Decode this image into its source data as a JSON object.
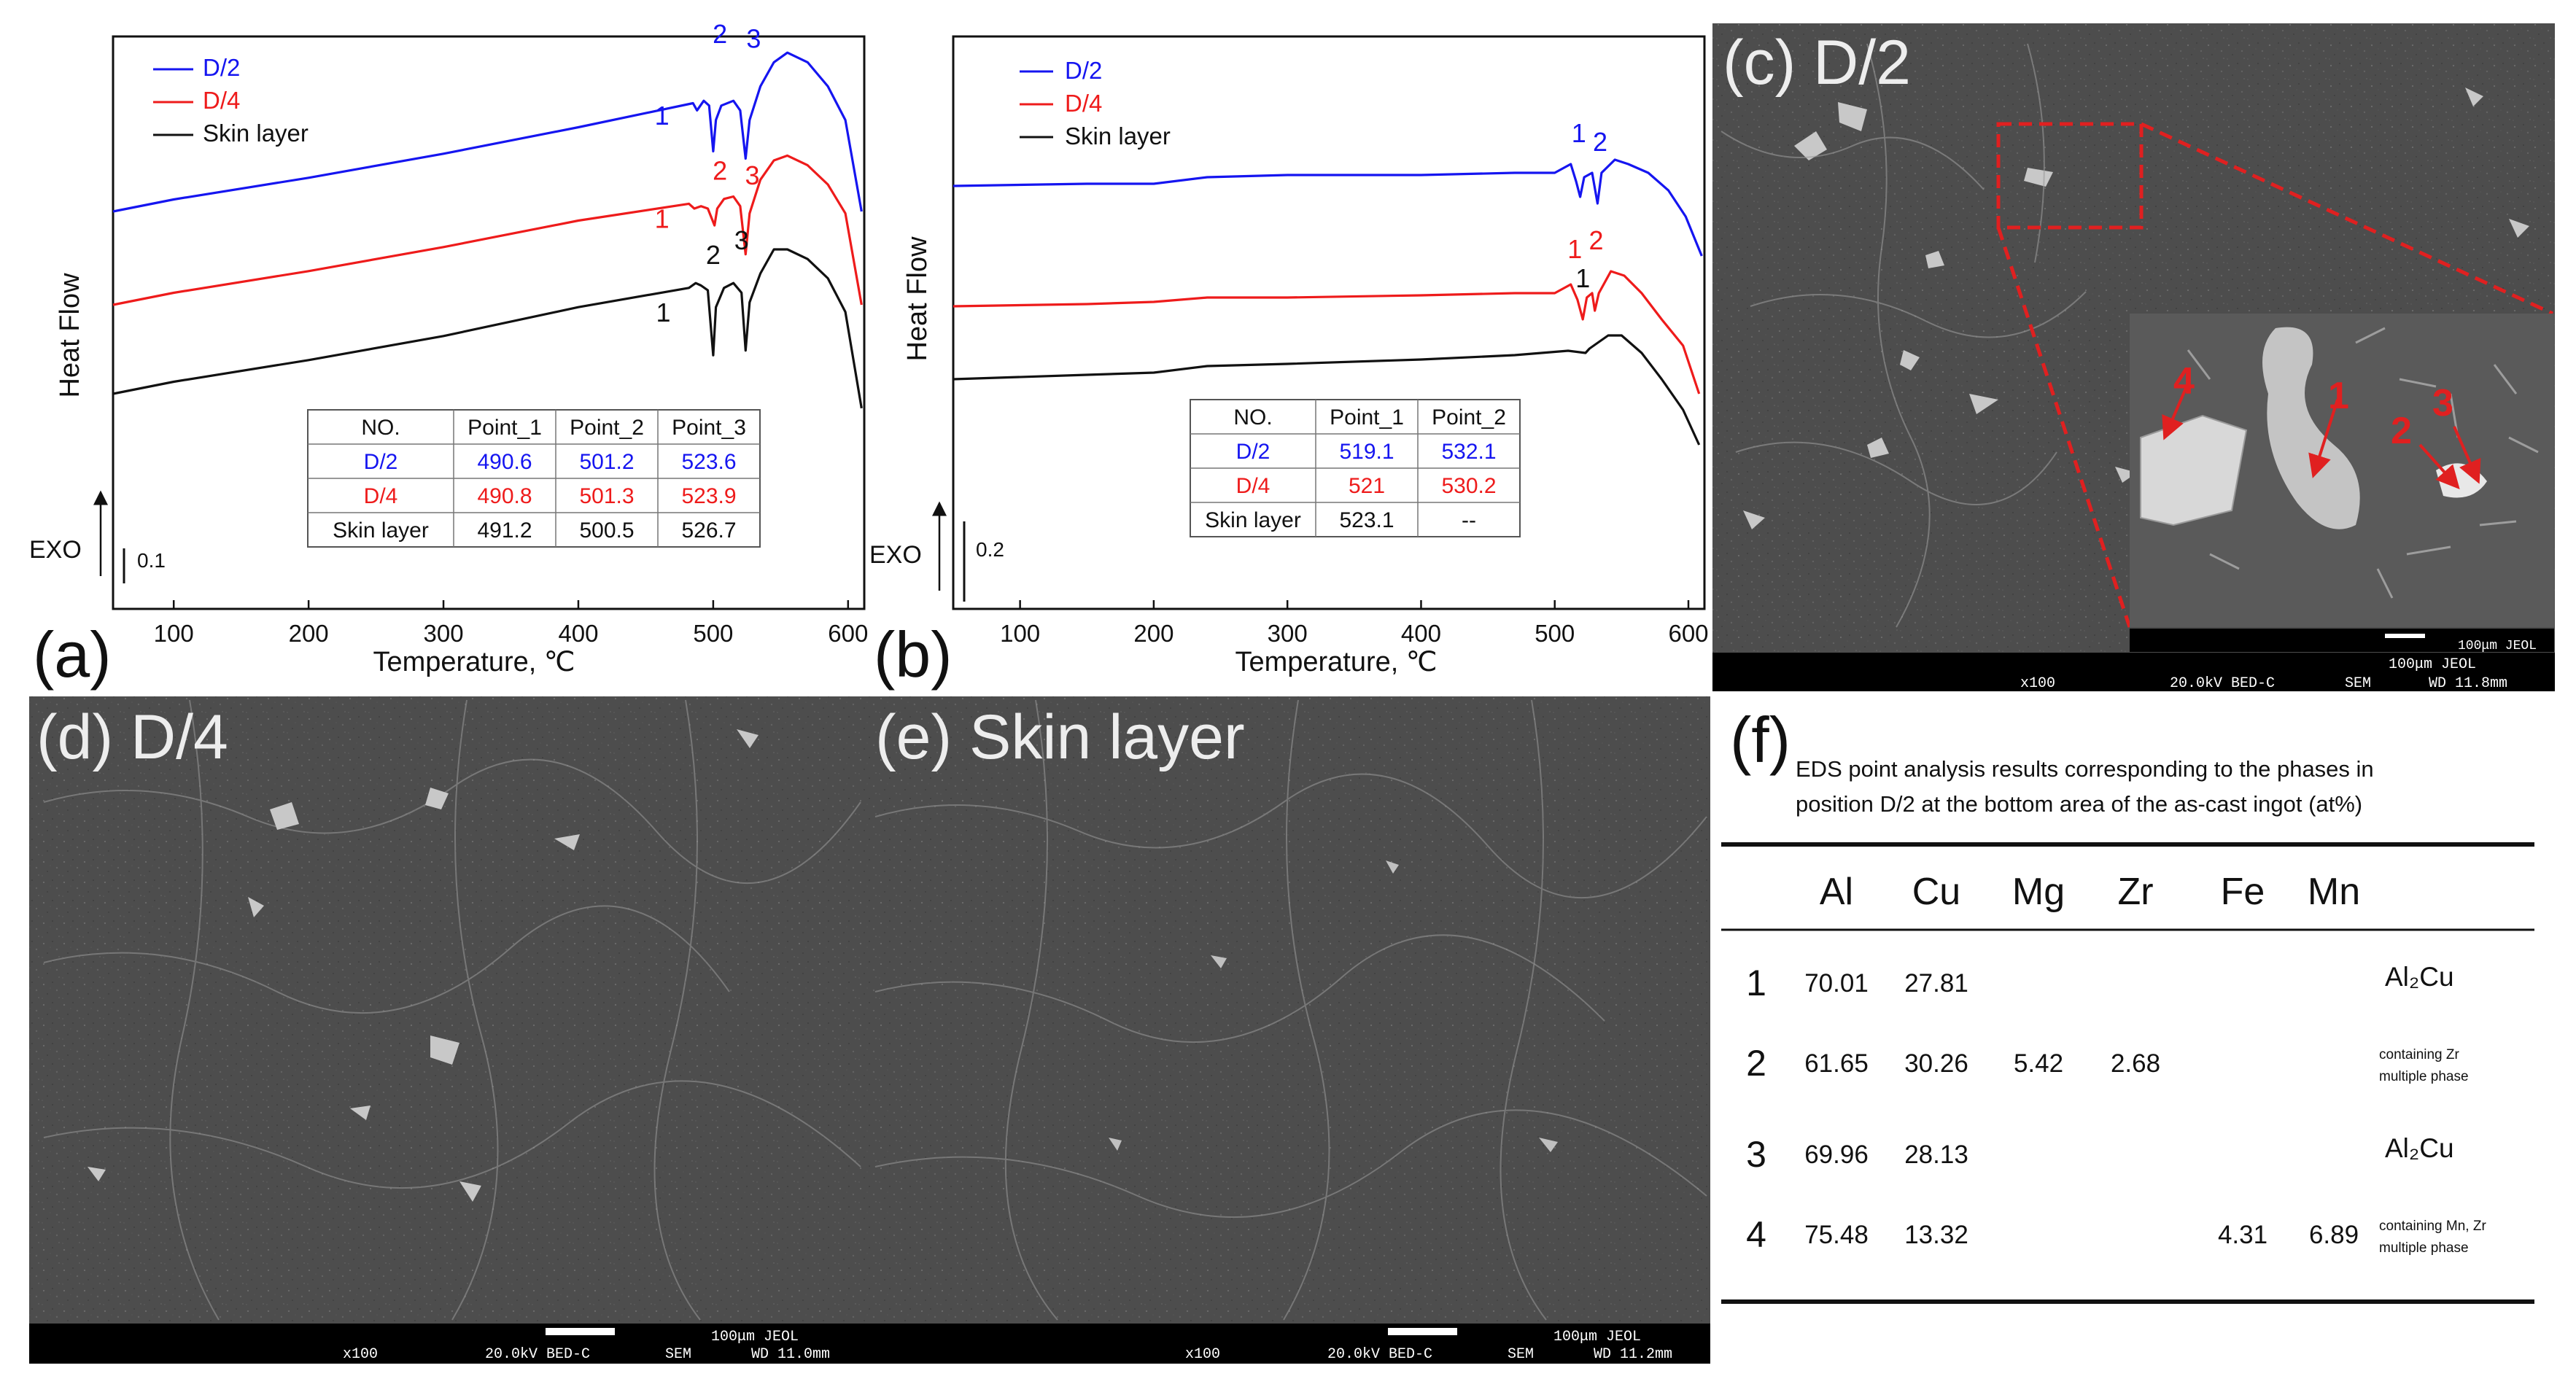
{
  "colors": {
    "blue": "#1515f0",
    "red": "#ee1b1b",
    "black": "#111111",
    "sem_bg": "#4a4a4a",
    "sem_bar": "#000000",
    "arrow_red": "#e02020"
  },
  "chart_data": [
    {
      "type": "line",
      "panel": "(a)",
      "xlabel": "Temperature, ℃",
      "ylabel": "Heat Flow",
      "xlim": [
        55,
        612
      ],
      "xticks": [
        100,
        200,
        300,
        400,
        500,
        600
      ],
      "exo_label": "EXO",
      "scale_label": "0.1",
      "legend": [
        "D/2",
        "D/4",
        "Skin layer"
      ],
      "series": [
        {
          "name": "D/2",
          "color": "blue",
          "points": [
            [
              55,
              0
            ],
            [
              100,
              0.05
            ],
            [
              200,
              0.14
            ],
            [
              300,
              0.24
            ],
            [
              400,
              0.35
            ],
            [
              485,
              0.45
            ],
            [
              488,
              0.42
            ],
            [
              493,
              0.46
            ],
            [
              497,
              0.44
            ],
            [
              500,
              0.25
            ],
            [
              502,
              0.38
            ],
            [
              506,
              0.44
            ],
            [
              515,
              0.46
            ],
            [
              520,
              0.42
            ],
            [
              524,
              0.22
            ],
            [
              527,
              0.38
            ],
            [
              535,
              0.52
            ],
            [
              545,
              0.62
            ],
            [
              555,
              0.66
            ],
            [
              570,
              0.62
            ],
            [
              585,
              0.52
            ],
            [
              598,
              0.38
            ],
            [
              610,
              0.0
            ]
          ],
          "labels": [
            {
              "text": "1",
              "x": 462,
              "y": 0.36
            },
            {
              "text": "2",
              "x": 505,
              "y": 0.7
            },
            {
              "text": "3",
              "x": 530,
              "y": 0.68
            }
          ]
        },
        {
          "name": "D/4",
          "color": "red",
          "points": [
            [
              55,
              0
            ],
            [
              100,
              0.05
            ],
            [
              200,
              0.14
            ],
            [
              300,
              0.24
            ],
            [
              400,
              0.35
            ],
            [
              482,
              0.42
            ],
            [
              486,
              0.4
            ],
            [
              491,
              0.41
            ],
            [
              496,
              0.4
            ],
            [
              501,
              0.33
            ],
            [
              503,
              0.4
            ],
            [
              508,
              0.44
            ],
            [
              515,
              0.45
            ],
            [
              520,
              0.41
            ],
            [
              524,
              0.21
            ],
            [
              527,
              0.38
            ],
            [
              535,
              0.52
            ],
            [
              545,
              0.6
            ],
            [
              555,
              0.62
            ],
            [
              570,
              0.58
            ],
            [
              585,
              0.5
            ],
            [
              598,
              0.38
            ],
            [
              610,
              0.0
            ]
          ],
          "labels": [
            {
              "text": "1",
              "x": 462,
              "y": 0.32
            },
            {
              "text": "2",
              "x": 505,
              "y": 0.52
            },
            {
              "text": "3",
              "x": 529,
              "y": 0.5
            }
          ]
        },
        {
          "name": "Skin layer",
          "color": "black",
          "points": [
            [
              55,
              0
            ],
            [
              100,
              0.05
            ],
            [
              200,
              0.14
            ],
            [
              300,
              0.24
            ],
            [
              400,
              0.36
            ],
            [
              482,
              0.44
            ],
            [
              487,
              0.46
            ],
            [
              491,
              0.45
            ],
            [
              496,
              0.43
            ],
            [
              500,
              0.16
            ],
            [
              502,
              0.36
            ],
            [
              508,
              0.44
            ],
            [
              515,
              0.46
            ],
            [
              521,
              0.42
            ],
            [
              524,
              0.18
            ],
            [
              527,
              0.38
            ],
            [
              535,
              0.5
            ],
            [
              545,
              0.6
            ],
            [
              555,
              0.6
            ],
            [
              570,
              0.56
            ],
            [
              585,
              0.48
            ],
            [
              598,
              0.34
            ],
            [
              610,
              -0.06
            ]
          ],
          "labels": [
            {
              "text": "1",
              "x": 463,
              "y": 0.3
            },
            {
              "text": "2",
              "x": 500,
              "y": 0.54
            },
            {
              "text": "3",
              "x": 521,
              "y": 0.6
            }
          ]
        }
      ],
      "table": {
        "headers": [
          "NO.",
          "Point_1",
          "Point_2",
          "Point_3"
        ],
        "rows": [
          {
            "name": "D/2",
            "color": "blue",
            "cells": [
              "490.6",
              "501.2",
              "523.6"
            ]
          },
          {
            "name": "D/4",
            "color": "red",
            "cells": [
              "490.8",
              "501.3",
              "523.9"
            ]
          },
          {
            "name": "Skin layer",
            "color": "black",
            "cells": [
              "491.2",
              "500.5",
              "526.7"
            ]
          }
        ]
      }
    },
    {
      "type": "line",
      "panel": "(b)",
      "xlabel": "Temperature, ℃",
      "ylabel": "Heat Flow",
      "xlim": [
        50,
        612
      ],
      "xticks": [
        100,
        200,
        300,
        400,
        500,
        600
      ],
      "exo_label": "EXO",
      "scale_label": "0.2",
      "legend": [
        "D/2",
        "D/4",
        "Skin layer"
      ],
      "series": [
        {
          "name": "D/2",
          "color": "blue",
          "points": [
            [
              50,
              0
            ],
            [
              150,
              0.01
            ],
            [
              200,
              0.01
            ],
            [
              240,
              0.04
            ],
            [
              300,
              0.05
            ],
            [
              400,
              0.05
            ],
            [
              470,
              0.06
            ],
            [
              500,
              0.06
            ],
            [
              512,
              0.1
            ],
            [
              516,
              0.02
            ],
            [
              519,
              -0.05
            ],
            [
              522,
              0.04
            ],
            [
              528,
              0.06
            ],
            [
              532,
              -0.08
            ],
            [
              535,
              0.06
            ],
            [
              545,
              0.12
            ],
            [
              555,
              0.1
            ],
            [
              570,
              0.06
            ],
            [
              585,
              -0.02
            ],
            [
              598,
              -0.14
            ],
            [
              610,
              -0.32
            ]
          ],
          "labels": [
            {
              "text": "1",
              "x": 518,
              "y": 0.2
            },
            {
              "text": "2",
              "x": 534,
              "y": 0.16
            }
          ]
        },
        {
          "name": "D/4",
          "color": "red",
          "points": [
            [
              50,
              0
            ],
            [
              150,
              0.01
            ],
            [
              200,
              0.02
            ],
            [
              240,
              0.04
            ],
            [
              300,
              0.04
            ],
            [
              400,
              0.05
            ],
            [
              470,
              0.06
            ],
            [
              500,
              0.06
            ],
            [
              512,
              0.1
            ],
            [
              517,
              0.03
            ],
            [
              521,
              -0.06
            ],
            [
              524,
              0.04
            ],
            [
              528,
              0.06
            ],
            [
              530,
              -0.02
            ],
            [
              533,
              0.06
            ],
            [
              542,
              0.16
            ],
            [
              552,
              0.14
            ],
            [
              565,
              0.06
            ],
            [
              580,
              -0.06
            ],
            [
              596,
              -0.18
            ],
            [
              608,
              -0.4
            ]
          ],
          "labels": [
            {
              "text": "1",
              "x": 515,
              "y": 0.22
            },
            {
              "text": "2",
              "x": 531,
              "y": 0.26
            }
          ]
        },
        {
          "name": "Skin layer",
          "color": "black",
          "points": [
            [
              50,
              0
            ],
            [
              150,
              0.02
            ],
            [
              200,
              0.03
            ],
            [
              240,
              0.06
            ],
            [
              300,
              0.07
            ],
            [
              400,
              0.09
            ],
            [
              470,
              0.11
            ],
            [
              510,
              0.13
            ],
            [
              523,
              0.12
            ],
            [
              526,
              0.14
            ],
            [
              540,
              0.2
            ],
            [
              550,
              0.2
            ],
            [
              565,
              0.12
            ],
            [
              580,
              0.0
            ],
            [
              596,
              -0.14
            ],
            [
              608,
              -0.3
            ]
          ],
          "labels": [
            {
              "text": "1",
              "x": 521,
              "y": 0.42
            }
          ]
        }
      ],
      "table": {
        "headers": [
          "NO.",
          "Point_1",
          "Point_2"
        ],
        "rows": [
          {
            "name": "D/2",
            "color": "blue",
            "cells": [
              "519.1",
              "532.1"
            ]
          },
          {
            "name": "D/4",
            "color": "red",
            "cells": [
              "521",
              "530.2"
            ]
          },
          {
            "name": "Skin layer",
            "color": "black",
            "cells": [
              "523.1",
              "--"
            ]
          }
        ]
      }
    }
  ],
  "sem_panels": {
    "c": {
      "title": "(c) D/2",
      "scale": "100μm JEOL",
      "info": [
        "x100",
        "20.0kV BED-C",
        "SEM",
        "WD 11.8mm"
      ],
      "inset_scale": "100μm JEOL",
      "point_labels": [
        "1",
        "2",
        "3",
        "4"
      ]
    },
    "d": {
      "title": "(d) D/4",
      "scale": "100μm JEOL",
      "info": [
        "x100",
        "20.0kV BED-C",
        "SEM",
        "WD 11.0mm"
      ]
    },
    "e": {
      "title": "(e) Skin layer",
      "scale": "100μm JEOL",
      "info": [
        "x100",
        "20.0kV BED-C",
        "SEM",
        "WD 11.2mm"
      ]
    }
  },
  "eds_table": {
    "panel": "(f)",
    "caption_line1": "EDS point analysis results corresponding to the phases in",
    "caption_line2": "position D/2 at the bottom area of the as-cast ingot (at%)",
    "columns": [
      "Al",
      "Cu",
      "Mg",
      "Zr",
      "Fe",
      "Mn"
    ],
    "rows": [
      {
        "no": "1",
        "values": [
          "70.01",
          "27.81",
          "",
          "",
          "",
          ""
        ],
        "phase": [
          "Al₂Cu"
        ]
      },
      {
        "no": "2",
        "values": [
          "61.65",
          "30.26",
          "5.42",
          "2.68",
          "",
          ""
        ],
        "phase": [
          "containing Zr",
          "multiple phase"
        ]
      },
      {
        "no": "3",
        "values": [
          "69.96",
          "28.13",
          "",
          "",
          "",
          ""
        ],
        "phase": [
          "Al₂Cu"
        ]
      },
      {
        "no": "4",
        "values": [
          "75.48",
          "13.32",
          "",
          "",
          "4.31",
          "6.89"
        ],
        "phase": [
          "containing Mn, Zr",
          "multiple phase"
        ]
      }
    ]
  }
}
